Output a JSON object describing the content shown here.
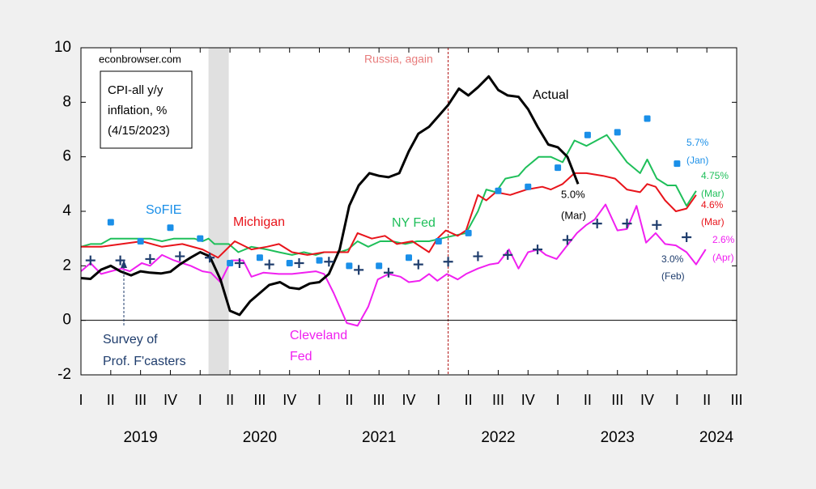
{
  "chart_data": {
    "type": "line",
    "ylim": [
      -2,
      10
    ],
    "yticks": [
      -2,
      0,
      2,
      4,
      6,
      8,
      10
    ],
    "xlim": [
      2019,
      2024.5
    ],
    "xticks": [
      {
        "value": 2019.0,
        "label": "I"
      },
      {
        "value": 2019.25,
        "label": "II"
      },
      {
        "value": 2019.5,
        "label": "III"
      },
      {
        "value": 2019.75,
        "label": "IV"
      },
      {
        "value": 2020.0,
        "label": "I"
      },
      {
        "value": 2020.25,
        "label": "II"
      },
      {
        "value": 2020.5,
        "label": "III"
      },
      {
        "value": 2020.75,
        "label": "IV"
      },
      {
        "value": 2021.0,
        "label": "I"
      },
      {
        "value": 2021.25,
        "label": "II"
      },
      {
        "value": 2021.5,
        "label": "III"
      },
      {
        "value": 2021.75,
        "label": "IV"
      },
      {
        "value": 2022.0,
        "label": "I"
      },
      {
        "value": 2022.25,
        "label": "II"
      },
      {
        "value": 2022.5,
        "label": "III"
      },
      {
        "value": 2022.75,
        "label": "IV"
      },
      {
        "value": 2023.0,
        "label": "I"
      },
      {
        "value": 2023.25,
        "label": "II"
      },
      {
        "value": 2023.5,
        "label": "III"
      },
      {
        "value": 2023.75,
        "label": "IV"
      },
      {
        "value": 2024.0,
        "label": "I"
      },
      {
        "value": 2024.25,
        "label": "II"
      },
      {
        "value": 2024.5,
        "label": "III"
      }
    ],
    "year_labels": [
      {
        "value": 2019.5,
        "label": "2019"
      },
      {
        "value": 2020.5,
        "label": "2020"
      },
      {
        "value": 2021.5,
        "label": "2021"
      },
      {
        "value": 2022.5,
        "label": "2022"
      },
      {
        "value": 2023.5,
        "label": "2023"
      },
      {
        "value": 2024.33,
        "label": "2024"
      }
    ],
    "shade": [
      2020.07,
      2020.24
    ],
    "vline": 2022.08,
    "series": [
      {
        "name": "Actual",
        "style": "line",
        "color": "#000000",
        "x": [
          2019,
          2019.08,
          2019.17,
          2019.25,
          2019.33,
          2019.42,
          2019.5,
          2019.58,
          2019.67,
          2019.75,
          2019.83,
          2019.92,
          2020,
          2020.08,
          2020.17,
          2020.25,
          2020.33,
          2020.42,
          2020.5,
          2020.58,
          2020.67,
          2020.75,
          2020.83,
          2020.92,
          2021,
          2021.08,
          2021.17,
          2021.25,
          2021.33,
          2021.42,
          2021.5,
          2021.58,
          2021.67,
          2021.75,
          2021.83,
          2021.92,
          2022,
          2022.08,
          2022.17,
          2022.25,
          2022.33,
          2022.42,
          2022.5,
          2022.58,
          2022.67,
          2022.75,
          2022.83,
          2022.92,
          2023,
          2023.08,
          2023.17
        ],
        "values": [
          1.55,
          1.52,
          1.86,
          2.0,
          1.8,
          1.65,
          1.8,
          1.75,
          1.72,
          1.78,
          2.05,
          2.3,
          2.5,
          2.35,
          1.5,
          0.35,
          0.2,
          0.7,
          1.0,
          1.3,
          1.4,
          1.2,
          1.15,
          1.35,
          1.4,
          1.7,
          2.6,
          4.2,
          4.95,
          5.4,
          5.3,
          5.25,
          5.4,
          6.2,
          6.85,
          7.1,
          7.5,
          7.9,
          8.5,
          8.25,
          8.55,
          8.95,
          8.45,
          8.25,
          8.2,
          7.75,
          7.1,
          6.45,
          6.35,
          6.0,
          5.0
        ]
      },
      {
        "name": "Michigan",
        "style": "line",
        "color": "#e8141b",
        "x": [
          2019.0,
          2019.17,
          2019.34,
          2019.51,
          2019.68,
          2019.85,
          2020.02,
          2020.15,
          2020.29,
          2020.43,
          2020.56,
          2020.66,
          2020.77,
          2020.9,
          2021.04,
          2021.24,
          2021.32,
          2021.44,
          2021.55,
          2021.65,
          2021.78,
          2021.92,
          2021.99,
          2022.06,
          2022.16,
          2022.23,
          2022.33,
          2022.4,
          2022.48,
          2022.6,
          2022.74,
          2022.87,
          2022.94,
          2023.04,
          2023.14,
          2023.24,
          2023.38,
          2023.48,
          2023.58,
          2023.69,
          2023.75,
          2023.82,
          2023.9,
          2023.99,
          2024.08,
          2024.16
        ],
        "values": [
          2.7,
          2.7,
          2.8,
          2.9,
          2.7,
          2.8,
          2.6,
          2.3,
          2.9,
          2.6,
          2.7,
          2.8,
          2.5,
          2.4,
          2.5,
          2.5,
          3.2,
          3.0,
          3.1,
          2.8,
          2.9,
          2.5,
          3.0,
          3.3,
          3.1,
          3.3,
          4.6,
          4.4,
          4.7,
          4.6,
          4.8,
          4.9,
          4.8,
          5.0,
          5.4,
          5.4,
          5.3,
          5.2,
          4.8,
          4.7,
          5.0,
          4.9,
          4.4,
          4.0,
          4.1,
          4.6
        ]
      },
      {
        "name": "NY Fed",
        "style": "line",
        "color": "#1fbf5a",
        "x": [
          2019.0,
          2019.08,
          2019.17,
          2019.25,
          2019.41,
          2019.58,
          2019.68,
          2019.78,
          2019.95,
          2020.02,
          2020.07,
          2020.12,
          2020.24,
          2020.32,
          2020.43,
          2020.56,
          2020.66,
          2020.77,
          2020.87,
          2020.97,
          2021.04,
          2021.17,
          2021.24,
          2021.32,
          2021.41,
          2021.51,
          2021.61,
          2021.72,
          2021.82,
          2021.92,
          2022.02,
          2022.12,
          2022.23,
          2022.33,
          2022.4,
          2022.48,
          2022.56,
          2022.67,
          2022.73,
          2022.84,
          2022.94,
          2023.04,
          2023.14,
          2023.24,
          2023.41,
          2023.58,
          2023.69,
          2023.75,
          2023.83,
          2023.92,
          2023.99,
          2024.08,
          2024.16
        ],
        "values": [
          2.7,
          2.8,
          2.8,
          3.0,
          3.0,
          3.0,
          2.9,
          3.0,
          3.0,
          2.9,
          3.0,
          2.8,
          2.8,
          2.5,
          2.7,
          2.6,
          2.5,
          2.4,
          2.5,
          2.4,
          2.5,
          2.5,
          2.6,
          2.9,
          2.7,
          2.9,
          2.9,
          2.8,
          2.9,
          2.9,
          3.0,
          3.1,
          3.2,
          4.0,
          4.8,
          4.7,
          5.2,
          5.3,
          5.6,
          6.0,
          6.0,
          5.8,
          6.6,
          6.4,
          6.8,
          5.8,
          5.4,
          5.9,
          5.2,
          4.95,
          4.95,
          4.2,
          4.75
        ]
      },
      {
        "name": "Cleveland Fed",
        "style": "line",
        "color": "#f020f0",
        "x": [
          2019.0,
          2019.08,
          2019.17,
          2019.25,
          2019.34,
          2019.41,
          2019.51,
          2019.58,
          2019.68,
          2019.78,
          2019.85,
          2019.92,
          2020.02,
          2020.09,
          2020.17,
          2020.26,
          2020.36,
          2020.43,
          2020.53,
          2020.66,
          2020.77,
          2020.87,
          2020.97,
          2021.04,
          2021.12,
          2021.23,
          2021.32,
          2021.41,
          2021.49,
          2021.58,
          2021.68,
          2021.75,
          2021.84,
          2021.92,
          2021.99,
          2022.07,
          2022.16,
          2022.23,
          2022.33,
          2022.43,
          2022.5,
          2022.59,
          2022.67,
          2022.75,
          2022.84,
          2022.9,
          2022.99,
          2023.07,
          2023.16,
          2023.24,
          2023.31,
          2023.4,
          2023.5,
          2023.58,
          2023.66,
          2023.74,
          2023.82,
          2023.9,
          2023.99,
          2024.08,
          2024.16,
          2024.24
        ],
        "values": [
          1.8,
          2.1,
          1.7,
          1.8,
          1.9,
          1.8,
          2.1,
          2.0,
          2.4,
          2.2,
          2.1,
          2.0,
          1.8,
          1.75,
          1.4,
          2.2,
          2.2,
          1.6,
          1.75,
          1.7,
          1.7,
          1.75,
          1.8,
          1.7,
          1.0,
          -0.1,
          -0.2,
          0.5,
          1.5,
          1.7,
          1.6,
          1.4,
          1.45,
          1.7,
          1.45,
          1.7,
          1.5,
          1.7,
          1.9,
          2.05,
          2.1,
          2.6,
          1.9,
          2.5,
          2.6,
          2.4,
          2.25,
          2.7,
          3.2,
          3.5,
          3.7,
          4.25,
          3.3,
          3.35,
          4.2,
          2.85,
          3.2,
          2.8,
          2.75,
          2.5,
          2.05,
          2.6
        ]
      },
      {
        "name": "SoFIE",
        "style": "square",
        "color": "#1a8fe8",
        "x": [
          2019.25,
          2019.5,
          2019.75,
          2020.0,
          2020.25,
          2020.5,
          2020.75,
          2021.0,
          2021.25,
          2021.5,
          2021.75,
          2022.0,
          2022.25,
          2022.5,
          2022.75,
          2023.0,
          2023.25,
          2023.5,
          2023.75,
          2024.0
        ],
        "values": [
          3.6,
          2.9,
          3.4,
          3.0,
          2.1,
          2.3,
          2.1,
          2.2,
          2.0,
          2.0,
          2.3,
          2.9,
          3.2,
          4.75,
          4.9,
          5.6,
          6.8,
          6.9,
          7.4,
          5.75
        ]
      },
      {
        "name": "Survey of Prof. F'casters",
        "style": "plus",
        "color": "#1f3d6d",
        "x": [
          2019.08,
          2019.33,
          2019.58,
          2019.83,
          2020.08,
          2020.33,
          2020.58,
          2020.83,
          2021.08,
          2021.33,
          2021.58,
          2021.83,
          2022.08,
          2022.33,
          2022.58,
          2022.83,
          2023.08,
          2023.33,
          2023.58,
          2023.83,
          2024.08
        ],
        "values": [
          2.2,
          2.2,
          2.25,
          2.35,
          2.3,
          2.1,
          2.05,
          2.1,
          2.15,
          1.85,
          1.75,
          2.05,
          2.15,
          2.35,
          2.4,
          2.6,
          2.95,
          3.55,
          3.55,
          3.5,
          3.05
        ]
      }
    ],
    "annotations": [
      {
        "text": "econbrowser.com",
        "color": "#000000"
      },
      {
        "text": "CPI-all y/y",
        "color": "#000000"
      },
      {
        "text": "inflation, %",
        "color": "#000000"
      },
      {
        "text": "(4/15/2023)",
        "color": "#000000"
      },
      {
        "text": "Russia, again",
        "color": "#e87c7c"
      },
      {
        "text": "Actual",
        "color": "#000000"
      },
      {
        "text": "SoFIE",
        "color": "#1a8fe8"
      },
      {
        "text": "Michigan",
        "color": "#e8141b"
      },
      {
        "text": "NY Fed",
        "color": "#1fbf5a"
      },
      {
        "text": "Cleveland",
        "color": "#f020f0"
      },
      {
        "text": "Fed",
        "color": "#f020f0"
      },
      {
        "text": "Survey of",
        "color": "#1f3d6d"
      },
      {
        "text": "Prof. F'casters",
        "color": "#1f3d6d"
      },
      {
        "text": "5.0%",
        "color": "#000000"
      },
      {
        "text": "(Mar)",
        "color": "#000000"
      },
      {
        "text": "5.7%",
        "color": "#1a8fe8"
      },
      {
        "text": "(Jan)",
        "color": "#1a8fe8"
      },
      {
        "text": "4.75%",
        "color": "#1fbf5a"
      },
      {
        "text": "(Mar)",
        "color": "#1fbf5a"
      },
      {
        "text": "4.6%",
        "color": "#e8141b"
      },
      {
        "text": "(Mar)",
        "color": "#e8141b"
      },
      {
        "text": "2.6%",
        "color": "#f020f0"
      },
      {
        "text": "(Apr)",
        "color": "#f020f0"
      },
      {
        "text": "3.0%",
        "color": "#1f3d6d"
      },
      {
        "text": "(Feb)",
        "color": "#1f3d6d"
      }
    ]
  }
}
